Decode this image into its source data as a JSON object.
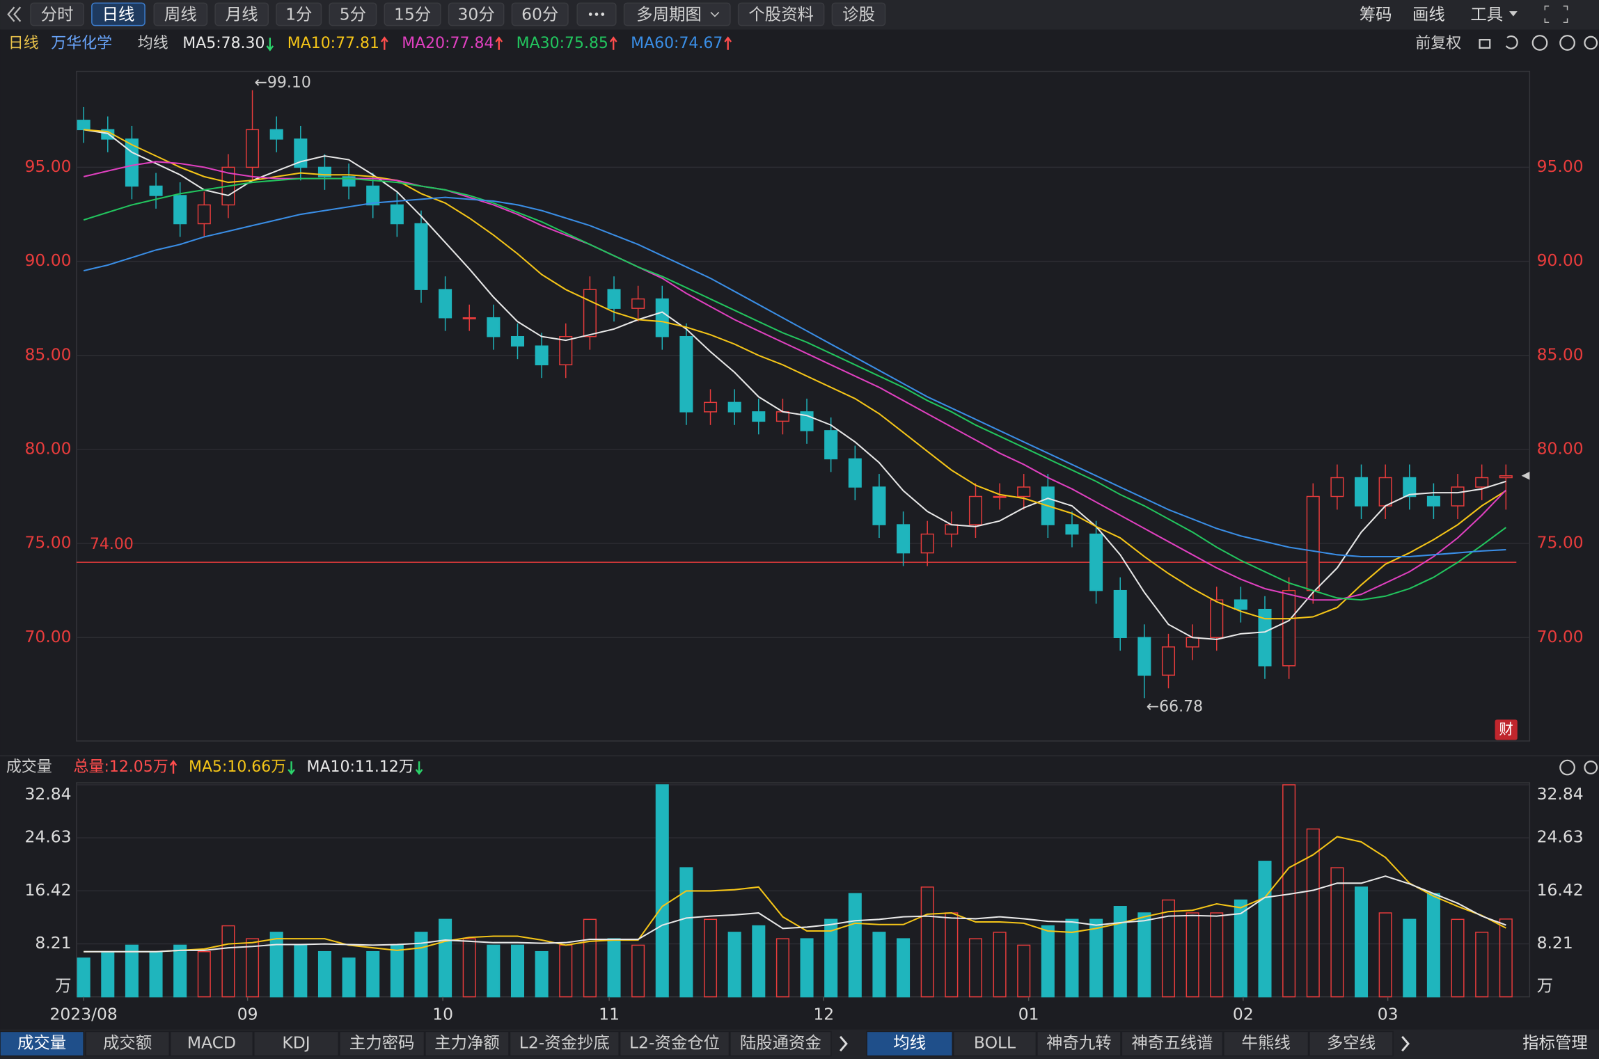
{
  "toolbar": {
    "left": [
      "分时",
      "日线",
      "周线",
      "月线",
      "1分",
      "5分",
      "15分",
      "30分",
      "60分",
      "多周期图",
      "个股资料",
      "诊股"
    ],
    "active": 1,
    "right": [
      "筹码",
      "画线",
      "工具"
    ]
  },
  "header": {
    "period": "日线",
    "stock": "万华化学",
    "ma_label": "均线",
    "adjust": "前复权",
    "badge": "财"
  },
  "chart_data": [
    {
      "type": "candlestick",
      "up_color": "#e83c3c",
      "down_color": "#1fb5bd",
      "grid": true,
      "open": [
        97.5,
        97,
        96.5,
        94,
        93.5,
        92,
        93,
        95,
        97,
        96.5,
        95,
        94.5,
        94,
        93,
        92,
        88.5,
        87,
        87,
        86,
        85.5,
        84.5,
        86,
        88.5,
        87.5,
        88,
        86,
        82,
        82.5,
        82,
        81.5,
        82,
        81,
        79.5,
        78,
        76,
        74.5,
        75.5,
        76,
        77.5,
        77.5,
        78,
        76,
        75.5,
        72.5,
        70,
        68,
        69.5,
        70,
        72,
        71.5,
        68.5,
        72.5,
        77.5,
        78.5,
        77,
        78.5,
        77.5,
        77,
        78,
        78.5
      ],
      "close": [
        97,
        96.5,
        94,
        93.5,
        92,
        93,
        95,
        97,
        96.5,
        95,
        94.5,
        94,
        93,
        92,
        88.5,
        87,
        87,
        86,
        85.5,
        84.5,
        86,
        88.5,
        87.5,
        88,
        86,
        82,
        82.5,
        82,
        81.5,
        82,
        81,
        79.5,
        78,
        76,
        74.5,
        75.5,
        76,
        77.5,
        77.5,
        78,
        76,
        75.5,
        72.5,
        70,
        68,
        69.5,
        70,
        72,
        71.5,
        68.5,
        72.5,
        77.5,
        78.5,
        77,
        78.5,
        77.5,
        77,
        78,
        78.5,
        78.6
      ],
      "low": [
        96.3,
        95.8,
        93.3,
        92.8,
        91.3,
        91.3,
        92.3,
        94.3,
        95.8,
        94.3,
        93.8,
        93.3,
        92.3,
        91.3,
        87.8,
        86.3,
        86.3,
        85.3,
        84.8,
        83.8,
        83.8,
        85.3,
        86.8,
        86.8,
        85.3,
        81.3,
        81.3,
        81.3,
        80.8,
        80.8,
        80.3,
        78.8,
        77.3,
        75.3,
        73.8,
        73.8,
        74.8,
        75.3,
        76.8,
        76.8,
        75.3,
        74.8,
        71.8,
        69.3,
        66.78,
        67.3,
        68.8,
        69.3,
        70.8,
        67.8,
        67.8,
        71.8,
        76.8,
        76.3,
        76.3,
        76.8,
        76.3,
        76.3,
        77.3,
        76.8
      ],
      "high": [
        98.2,
        97.7,
        97.2,
        94.7,
        94.2,
        93.7,
        95.7,
        99.1,
        97.7,
        97.2,
        95.7,
        95.2,
        94.7,
        93.7,
        92.7,
        89.2,
        87.7,
        87.7,
        86.7,
        86.2,
        86.7,
        89.2,
        89.2,
        88.7,
        88.7,
        86.7,
        83.2,
        83.2,
        82.7,
        82.7,
        82.7,
        81.7,
        80.2,
        78.7,
        76.7,
        76.2,
        76.7,
        78.2,
        78.2,
        78.7,
        78.7,
        76.7,
        76.2,
        73.2,
        70.7,
        70.2,
        70.7,
        72.7,
        72.7,
        72.2,
        73.2,
        78.2,
        79.2,
        79.2,
        79.2,
        79.2,
        78.2,
        78.7,
        79.2,
        79.2
      ],
      "series": [
        {
          "name": "MA5:78.30",
          "color": "#e8e8e8",
          "trend": "down",
          "values": [
            97,
            96.8,
            95.8,
            95.2,
            94.6,
            93.8,
            93.5,
            94.3,
            94.8,
            95.3,
            95.6,
            95.4,
            94.6,
            93.7,
            92.4,
            91,
            89.6,
            88.1,
            86.8,
            86,
            85.8,
            86.1,
            86.4,
            86.9,
            87.3,
            86.4,
            85.2,
            84.1,
            82.8,
            82,
            81.8,
            81.3,
            80.4,
            79.3,
            77.8,
            76.7,
            76,
            75.9,
            76.2,
            76.9,
            77.4,
            77,
            75.9,
            74.4,
            72.4,
            70.7,
            70,
            69.9,
            70.2,
            70.3,
            70.9,
            72.4,
            73.7,
            75.6,
            77,
            77.6,
            77.7,
            77.7,
            77.9,
            78.3
          ]
        },
        {
          "name": "MA10:77.81",
          "color": "#f5c518",
          "trend": "up",
          "values": [
            97,
            96.9,
            96.2,
            95.6,
            95,
            94.5,
            94.2,
            94.3,
            94.5,
            94.7,
            94.6,
            94.6,
            94.5,
            94.3,
            93.6,
            93.1,
            92.3,
            91.4,
            90.4,
            89.3,
            88.5,
            87.9,
            87.3,
            86.9,
            86.8,
            86.5,
            86.1,
            85.6,
            85,
            84.5,
            83.9,
            83.3,
            82.7,
            81.9,
            80.9,
            79.9,
            78.9,
            78.1,
            77.6,
            77.4,
            77,
            76.6,
            75.9,
            75.3,
            74.3,
            73.4,
            72.6,
            71.9,
            71.4,
            71,
            71,
            71.1,
            71.6,
            72.8,
            73.9,
            74.5,
            75.2,
            76,
            77,
            77.81
          ]
        },
        {
          "name": "MA20:77.84",
          "color": "#e040c0",
          "trend": "up",
          "values": [
            94.5,
            94.8,
            95.1,
            95.3,
            95.2,
            95,
            94.7,
            94.5,
            94.4,
            94.4,
            94.4,
            94.4,
            94.4,
            94.3,
            94,
            93.8,
            93.4,
            93,
            92.5,
            91.9,
            91.4,
            90.9,
            90.3,
            89.7,
            89.1,
            88.3,
            87.6,
            86.9,
            86.3,
            85.7,
            85.1,
            84.5,
            83.9,
            83.3,
            82.6,
            81.9,
            81.2,
            80.5,
            79.8,
            79.2,
            78.5,
            77.9,
            77.2,
            76.5,
            75.8,
            75.1,
            74.4,
            73.7,
            73.1,
            72.6,
            72.3,
            72,
            72,
            72.3,
            72.9,
            73.5,
            74.3,
            75.3,
            76.5,
            77.84
          ]
        },
        {
          "name": "MA30:75.85",
          "color": "#22c55e",
          "trend": "up",
          "values": [
            92.2,
            92.6,
            93,
            93.3,
            93.6,
            93.8,
            94,
            94.2,
            94.3,
            94.4,
            94.4,
            94.4,
            94.3,
            94.2,
            94,
            93.8,
            93.5,
            93.1,
            92.6,
            92.1,
            91.5,
            90.9,
            90.3,
            89.7,
            89.2,
            88.6,
            88,
            87.4,
            86.8,
            86.2,
            85.7,
            85.1,
            84.5,
            83.9,
            83.3,
            82.6,
            82,
            81.3,
            80.7,
            80.1,
            79.5,
            78.9,
            78.3,
            77.6,
            77,
            76.3,
            75.6,
            74.8,
            74.1,
            73.5,
            72.9,
            72.5,
            72.1,
            72,
            72.2,
            72.6,
            73.2,
            74,
            74.9,
            75.85
          ]
        },
        {
          "name": "MA60:74.67",
          "color": "#3a8ee6",
          "trend": "up",
          "values": [
            89.5,
            89.8,
            90.2,
            90.6,
            90.9,
            91.3,
            91.6,
            91.9,
            92.2,
            92.5,
            92.7,
            92.9,
            93.1,
            93.2,
            93.3,
            93.4,
            93.3,
            93.2,
            93,
            92.7,
            92.3,
            91.9,
            91.4,
            90.9,
            90.3,
            89.7,
            89.1,
            88.4,
            87.7,
            87,
            86.3,
            85.6,
            84.9,
            84.2,
            83.5,
            82.8,
            82.2,
            81.6,
            81,
            80.4,
            79.8,
            79.2,
            78.6,
            78,
            77.4,
            76.8,
            76.3,
            75.8,
            75.4,
            75.1,
            74.8,
            74.6,
            74.4,
            74.3,
            74.3,
            74.3,
            74.4,
            74.5,
            74.6,
            74.67
          ]
        }
      ],
      "ylim": [
        64.5,
        100.1
      ],
      "yticks": [
        {
          "value": 70,
          "label": "70.00"
        },
        {
          "value": 75,
          "label": "75.00"
        },
        {
          "value": 80,
          "label": "80.00"
        },
        {
          "value": 85,
          "label": "85.00"
        },
        {
          "value": 90,
          "label": "90.00"
        },
        {
          "value": 95,
          "label": "95.00"
        }
      ],
      "hline": {
        "value": 74,
        "label": "74.00",
        "color": "#e83c3c"
      },
      "annotations": [
        {
          "index": 7,
          "value": 99.1,
          "label": "←99.10"
        },
        {
          "index": 44,
          "value": 66.78,
          "label": "←66.78"
        }
      ]
    },
    {
      "type": "bar",
      "title": "成交量",
      "legend": [
        {
          "name": "总量:12.05万",
          "color": "#ff4d4d",
          "trend": "up"
        },
        {
          "name": "MA5:10.66万",
          "color": "#f5c518",
          "trend": "down"
        },
        {
          "name": "MA10:11.12万",
          "color": "#e8e8e8",
          "trend": "down"
        }
      ],
      "values": [
        6,
        7,
        8,
        7,
        8,
        7,
        11,
        9,
        10,
        8,
        7,
        6,
        7,
        8,
        10,
        12,
        9,
        8,
        8,
        7,
        8,
        12,
        9,
        8,
        32.84,
        20,
        12,
        10,
        11,
        9,
        9,
        12,
        16,
        10,
        9,
        17,
        13,
        9,
        10,
        8,
        11,
        12,
        12,
        14,
        13,
        15,
        13,
        13,
        15,
        21,
        32.84,
        26,
        20,
        17,
        13,
        12,
        16,
        12,
        10,
        12.05
      ],
      "series": [
        {
          "name": "MA5",
          "color": "#f5c518",
          "values": [
            7,
            7,
            7,
            7,
            7.2,
            7.4,
            8.2,
            8.4,
            9,
            9,
            9,
            8,
            7.6,
            7.2,
            7.6,
            8.6,
            9.2,
            9.4,
            9.4,
            8.8,
            8,
            8.6,
            8.8,
            8.8,
            14,
            16.4,
            16.4,
            16.6,
            17,
            12.4,
            10.2,
            10.2,
            11.4,
            11.2,
            11.2,
            12.8,
            13,
            11.6,
            11.6,
            11.4,
            10.2,
            10,
            10.6,
            11.4,
            12.4,
            13.2,
            13.4,
            14.4,
            13.8,
            15.4,
            20,
            22,
            24.8,
            24,
            21.6,
            17.6,
            15.6,
            14,
            12.6,
            10.66
          ]
        },
        {
          "name": "MA10",
          "color": "#e8e8e8",
          "values": [
            7,
            7,
            7,
            7,
            7.2,
            7.2,
            7.6,
            7.8,
            8.1,
            8.1,
            8.2,
            8.1,
            8,
            8.1,
            8.3,
            8.8,
            8.6,
            8.4,
            8.4,
            8.3,
            8.4,
            8.9,
            8.9,
            8.9,
            11.1,
            12.2,
            12.5,
            12.7,
            13,
            10.6,
            10.8,
            11.2,
            11.8,
            12,
            12.4,
            12.5,
            12.2,
            12.1,
            12.4,
            12.1,
            11.7,
            11.6,
            11.1,
            11.5,
            11.8,
            12.5,
            12.6,
            12.5,
            12.9,
            15.4,
            15.9,
            16.5,
            17.6,
            17.6,
            18.7,
            17.5,
            16,
            14.5,
            12.5,
            11.12
          ]
        }
      ],
      "ylim": [
        0,
        32.84
      ],
      "yticks": [
        {
          "value": 0,
          "label": "万"
        },
        8.21,
        16.42,
        24.63,
        32.84
      ],
      "xticks": [
        {
          "value": 0,
          "label": "2023/08"
        },
        {
          "value": 6.8,
          "label": "09"
        },
        {
          "value": 14.9,
          "label": "10"
        },
        {
          "value": 21.8,
          "label": "11"
        },
        {
          "value": 30.7,
          "label": "12"
        },
        {
          "value": 39.2,
          "label": "01"
        },
        {
          "value": 48.1,
          "label": "02"
        },
        {
          "value": 54.1,
          "label": "03"
        }
      ]
    }
  ],
  "indicator_tabs": [
    "成交量",
    "成交额",
    "MACD",
    "KDJ",
    "主力密码",
    "主力净额",
    "L2-资金抄底",
    "L2-资金仓位",
    "陆股通资金"
  ],
  "indicator_active": 0,
  "overlay_tabs": [
    "均线",
    "BOLL",
    "神奇九转",
    "神奇五线谱",
    "牛熊线",
    "多空线"
  ],
  "overlay_active": 0,
  "manage": "指标管理"
}
